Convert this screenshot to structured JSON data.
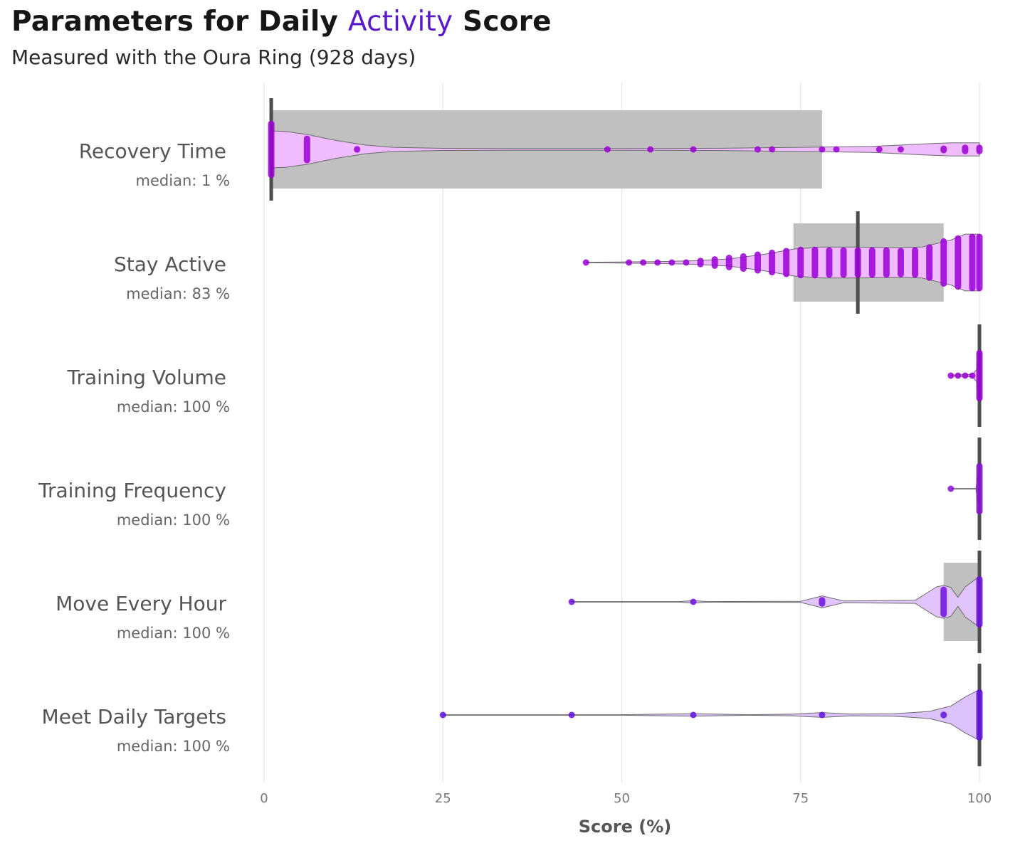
{
  "header": {
    "title_pre": "Parameters for Daily ",
    "title_accent": "Activity",
    "title_post": " Score",
    "subtitle": "Measured with the Oura Ring (928 days)"
  },
  "colors": {
    "accent": "#5a1ac8",
    "violin_fill": "#efbcff",
    "point": "#8a00d4",
    "box": "#c0c0c0",
    "median": "#4d4d4d"
  },
  "chart_data": {
    "type": "violin",
    "xlabel": "Score (%)",
    "xlim": [
      0,
      100
    ],
    "xticks": [
      0,
      25,
      50,
      75,
      100
    ],
    "xtick_labels": [
      "0",
      "25",
      "50",
      "75",
      "100"
    ],
    "grid": "vertical",
    "categories": [
      {
        "name": "Recovery Time",
        "median_label": "median: 1 %",
        "median": 1,
        "q1": 1,
        "q3": 78,
        "violin_fill": "#efbcff",
        "point_color": "#9a00d6",
        "density": [
          [
            1,
            0.62
          ],
          [
            3,
            0.6
          ],
          [
            6,
            0.5
          ],
          [
            10,
            0.3
          ],
          [
            14,
            0.15
          ],
          [
            18,
            0.07
          ],
          [
            25,
            0.035
          ],
          [
            35,
            0.025
          ],
          [
            45,
            0.025
          ],
          [
            55,
            0.03
          ],
          [
            65,
            0.04
          ],
          [
            75,
            0.07
          ],
          [
            85,
            0.1
          ],
          [
            92,
            0.18
          ],
          [
            96,
            0.22
          ],
          [
            100,
            0.22
          ]
        ],
        "points": [
          [
            1,
            0.95
          ],
          [
            6,
            0.45
          ],
          [
            13,
            0.1
          ],
          [
            48,
            0.05
          ],
          [
            54,
            0.02
          ],
          [
            60,
            0.02
          ],
          [
            69,
            0.05
          ],
          [
            71,
            0.03
          ],
          [
            78,
            0.06
          ],
          [
            80,
            0.06
          ],
          [
            86,
            0.06
          ],
          [
            89,
            0.06
          ],
          [
            95,
            0.12
          ],
          [
            98,
            0.15
          ],
          [
            100,
            0.15
          ]
        ]
      },
      {
        "name": "Stay Active",
        "median_label": "median: 83 %",
        "median": 83,
        "q1": 74,
        "q3": 95,
        "violin_fill": "#efbcff",
        "point_color": "#9a00d6",
        "density": [
          [
            45,
            0.01
          ],
          [
            50,
            0.02
          ],
          [
            55,
            0.03
          ],
          [
            60,
            0.06
          ],
          [
            65,
            0.12
          ],
          [
            70,
            0.28
          ],
          [
            74,
            0.45
          ],
          [
            78,
            0.52
          ],
          [
            83,
            0.52
          ],
          [
            88,
            0.5
          ],
          [
            92,
            0.52
          ],
          [
            96,
            0.75
          ],
          [
            98,
            0.95
          ],
          [
            100,
            0.95
          ]
        ],
        "points": [
          [
            45,
            0.01
          ],
          [
            51,
            0.02
          ],
          [
            53,
            0.02
          ],
          [
            55,
            0.04
          ],
          [
            57,
            0.05
          ],
          [
            59,
            0.08
          ],
          [
            61,
            0.15
          ],
          [
            63,
            0.2
          ],
          [
            65,
            0.25
          ],
          [
            67,
            0.3
          ],
          [
            69,
            0.36
          ],
          [
            71,
            0.42
          ],
          [
            73,
            0.48
          ],
          [
            75,
            0.52
          ],
          [
            77,
            0.52
          ],
          [
            79,
            0.5
          ],
          [
            81,
            0.5
          ],
          [
            83,
            0.5
          ],
          [
            85,
            0.5
          ],
          [
            87,
            0.5
          ],
          [
            89,
            0.48
          ],
          [
            91,
            0.5
          ],
          [
            93,
            0.6
          ],
          [
            95,
            0.8
          ],
          [
            97,
            0.9
          ],
          [
            99,
            0.95
          ],
          [
            100,
            0.95
          ]
        ]
      },
      {
        "name": "Training Volume",
        "median_label": "median: 100 %",
        "median": 100,
        "q1": 100,
        "q3": 100,
        "violin_fill": "#efbcff",
        "point_color": "#9a00d6",
        "density": [
          [
            96,
            0.02
          ],
          [
            97,
            0.03
          ],
          [
            98,
            0.03
          ],
          [
            99,
            0.04
          ],
          [
            99.6,
            0.2
          ],
          [
            100,
            0.85
          ]
        ],
        "points": [
          [
            96,
            0.02
          ],
          [
            97,
            0.02
          ],
          [
            98,
            0.02
          ],
          [
            99,
            0.02
          ],
          [
            100,
            0.85
          ]
        ]
      },
      {
        "name": "Training Frequency",
        "median_label": "median: 100 %",
        "median": 100,
        "q1": 100,
        "q3": 100,
        "violin_fill": "#e8c8f8",
        "point_color": "#8a10d8",
        "density": [
          [
            96,
            0.01
          ],
          [
            99.5,
            0.01
          ],
          [
            100,
            0.85
          ]
        ],
        "points": [
          [
            96,
            0.01
          ],
          [
            100,
            0.85
          ]
        ]
      },
      {
        "name": "Move Every Hour",
        "median_label": "median: 100 %",
        "median": 100,
        "q1": 95,
        "q3": 100,
        "violin_fill": "#e0c4fb",
        "point_color": "#6f10e0",
        "density": [
          [
            43,
            0.01
          ],
          [
            58,
            0.01
          ],
          [
            60,
            0.04
          ],
          [
            62,
            0.01
          ],
          [
            75,
            0.02
          ],
          [
            78,
            0.2
          ],
          [
            81,
            0.03
          ],
          [
            91,
            0.05
          ],
          [
            94,
            0.5
          ],
          [
            95,
            0.55
          ],
          [
            96,
            0.48
          ],
          [
            97,
            0.15
          ],
          [
            98,
            0.5
          ],
          [
            100,
            0.85
          ]
        ],
        "points": [
          [
            43,
            0.01
          ],
          [
            60,
            0.02
          ],
          [
            78,
            0.15
          ],
          [
            95,
            0.5
          ],
          [
            100,
            0.85
          ]
        ]
      },
      {
        "name": "Meet Daily Targets",
        "median_label": "median: 100 %",
        "median": 100,
        "q1": 100,
        "q3": 100,
        "violin_fill": "#dcc2fb",
        "point_color": "#6010e0",
        "density": [
          [
            25,
            0.01
          ],
          [
            43,
            0.01
          ],
          [
            50,
            0.01
          ],
          [
            60,
            0.04
          ],
          [
            68,
            0.01
          ],
          [
            74,
            0.03
          ],
          [
            78,
            0.08
          ],
          [
            82,
            0.03
          ],
          [
            88,
            0.04
          ],
          [
            93,
            0.12
          ],
          [
            96,
            0.3
          ],
          [
            98,
            0.6
          ],
          [
            100,
            0.85
          ]
        ],
        "points": [
          [
            25,
            0.01
          ],
          [
            43,
            0.01
          ],
          [
            60,
            0.03
          ],
          [
            78,
            0.08
          ],
          [
            95,
            0.1
          ],
          [
            100,
            0.85
          ]
        ]
      }
    ]
  }
}
